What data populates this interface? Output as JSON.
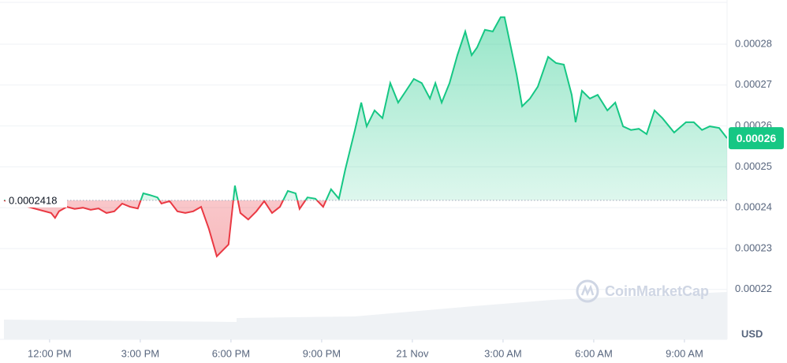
{
  "chart_data": {
    "type": "line",
    "x": [
      10.49,
      12.05,
      12.18,
      12.31,
      12.57,
      12.83,
      13.1,
      13.36,
      13.62,
      13.88,
      14.14,
      14.4,
      14.66,
      14.92,
      15.1,
      15.31,
      15.57,
      15.7,
      15.97,
      16.23,
      16.49,
      16.75,
      17.01,
      17.27,
      17.53,
      17.92,
      18.13,
      18.31,
      18.57,
      18.84,
      19.1,
      19.36,
      19.62,
      19.88,
      20.14,
      20.27,
      20.53,
      20.79,
      21.05,
      21.31,
      21.57,
      21.78,
      22.1,
      22.31,
      22.49,
      22.75,
      23.01,
      23.27,
      23.53,
      23.79,
      24.05,
      24.31,
      24.58,
      24.76,
      24.97,
      25.23,
      25.49,
      25.75,
      25.96,
      26.14,
      26.4,
      26.66,
      26.92,
      27.05,
      27.26,
      27.45,
      27.63,
      27.89,
      28.15,
      28.49,
      28.75,
      29.01,
      29.27,
      29.4,
      29.61,
      29.87,
      30.13,
      30.45,
      30.71,
      30.97,
      31.23,
      31.49,
      31.75,
      32.01,
      32.27,
      32.66,
      33.05,
      33.31,
      33.58,
      33.84,
      34.15,
      34.41
    ],
    "series": [
      {
        "values": [
          0.0002418,
          0.0002387,
          0.0002375,
          0.0002391,
          0.0002402,
          0.0002397,
          0.00024,
          0.0002395,
          0.0002398,
          0.0002387,
          0.0002391,
          0.000241,
          0.0002402,
          0.0002398,
          0.0002435,
          0.0002431,
          0.0002425,
          0.000241,
          0.0002416,
          0.0002391,
          0.0002387,
          0.0002391,
          0.0002402,
          0.0002348,
          0.0002281,
          0.000231,
          0.0002454,
          0.0002387,
          0.0002371,
          0.0002391,
          0.0002416,
          0.0002387,
          0.0002402,
          0.0002441,
          0.0002435,
          0.0002397,
          0.0002425,
          0.0002422,
          0.0002402,
          0.0002445,
          0.0002422,
          0.0002493,
          0.000259,
          0.0002657,
          0.0002599,
          0.0002638,
          0.0002619,
          0.0002705,
          0.0002657,
          0.0002686,
          0.0002715,
          0.0002705,
          0.0002667,
          0.0002705,
          0.0002657,
          0.0002705,
          0.0002773,
          0.0002831,
          0.0002773,
          0.0002792,
          0.0002835,
          0.0002831,
          0.0002866,
          0.0002866,
          0.0002792,
          0.0002725,
          0.0002648,
          0.0002667,
          0.0002696,
          0.0002769,
          0.0002754,
          0.000275,
          0.0002676,
          0.0002609,
          0.0002686,
          0.0002667,
          0.0002676,
          0.0002638,
          0.0002657,
          0.0002599,
          0.000259,
          0.0002593,
          0.000258,
          0.0002638,
          0.0002619,
          0.0002584,
          0.0002609,
          0.0002609,
          0.000259,
          0.0002599,
          0.0002595,
          0.000257
        ],
        "up_color": "#16c784",
        "down_color": "#ea3943"
      }
    ],
    "baseline": 0.0002418,
    "current_price": {
      "value": 0.000257,
      "label": "0.00026"
    },
    "xlim": [
      10.49,
      34.41
    ],
    "xticks": [
      {
        "value": 12,
        "label": "12:00 PM"
      },
      {
        "value": 15,
        "label": "3:00 PM"
      },
      {
        "value": 18,
        "label": "6:00 PM"
      },
      {
        "value": 21,
        "label": "9:00 PM"
      },
      {
        "value": 24,
        "label": "21 Nov"
      },
      {
        "value": 27,
        "label": "3:00 AM"
      },
      {
        "value": 30,
        "label": "6:00 AM"
      },
      {
        "value": 33,
        "label": "9:00 AM"
      }
    ],
    "ylim": [
      0.0002078,
      0.0002908
    ],
    "yticks": [
      0.00022,
      0.00023,
      0.00024,
      0.00025,
      0.00026,
      0.00027,
      0.00028
    ],
    "currency": "USD",
    "watermark": "CoinMarketCap",
    "grid": true
  }
}
